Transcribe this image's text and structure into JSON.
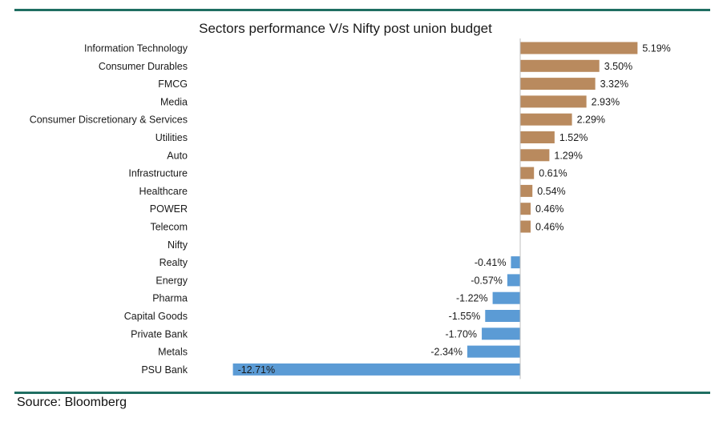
{
  "chart_data": {
    "type": "bar",
    "orientation": "horizontal",
    "title": "Sectors performance V/s Nifty post union budget",
    "categories": [
      "Information Technology",
      "Consumer Durables",
      "FMCG",
      "Media",
      "Consumer Discretionary & Services",
      "Utilities",
      "Auto",
      "Infrastructure",
      "Healthcare",
      "POWER",
      "Telecom",
      "Nifty",
      "Realty",
      "Energy",
      "Pharma",
      "Capital Goods",
      "Private Bank",
      "Metals",
      "PSU Bank"
    ],
    "values": [
      5.19,
      3.5,
      3.32,
      2.93,
      2.29,
      1.52,
      1.29,
      0.61,
      0.54,
      0.46,
      0.46,
      null,
      -0.41,
      -0.57,
      -1.22,
      -1.55,
      -1.7,
      -2.34,
      -12.71
    ],
    "value_labels": [
      "5.19%",
      "3.50%",
      "3.32%",
      "2.93%",
      "2.29%",
      "1.52%",
      "1.29%",
      "0.61%",
      "0.54%",
      "0.46%",
      "0.46%",
      "",
      "-0.41%",
      "-0.57%",
      "-1.22%",
      "-1.55%",
      "-1.70%",
      "-2.34%",
      "-12.71%"
    ],
    "colors": {
      "positive": "#b98a5e",
      "negative": "#5b9bd5",
      "axis": "#bfbfbf"
    },
    "grid": false,
    "legend": "none"
  },
  "footer": {
    "source": "Source: Bloomberg"
  }
}
